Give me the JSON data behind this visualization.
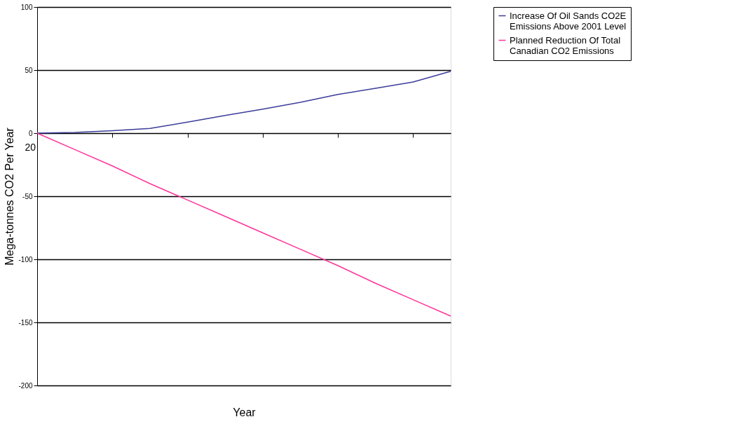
{
  "chart_data": {
    "type": "line",
    "xlabel": "Year",
    "ylabel": "Mega-tonnes CO2 Per Year",
    "categories": [
      null,
      null,
      null,
      null,
      null,
      null,
      null,
      null,
      null,
      null,
      null,
      null
    ],
    "annotations": [
      "20"
    ],
    "ylim": [
      -200,
      100
    ],
    "yticks": [
      -200,
      -150,
      -100,
      -50,
      0,
      50,
      100
    ],
    "grid": "y",
    "legend": "right",
    "series": [
      {
        "name": "Increase Of Oil Sands CO2E Emissions Above 2001 Level",
        "color": "#3c3c9a",
        "values": [
          0,
          0.5,
          2,
          3.7,
          8.7,
          14,
          19,
          24.5,
          30.7,
          35.6,
          40.6,
          49
        ]
      },
      {
        "name": "Planned Reduction Of Total Canadian CO2 Emissions",
        "color": "#ff3399",
        "values": [
          0,
          -13,
          -26,
          -40,
          -53,
          -66,
          -79,
          -92,
          -105,
          -119,
          -132,
          -145
        ]
      }
    ]
  }
}
